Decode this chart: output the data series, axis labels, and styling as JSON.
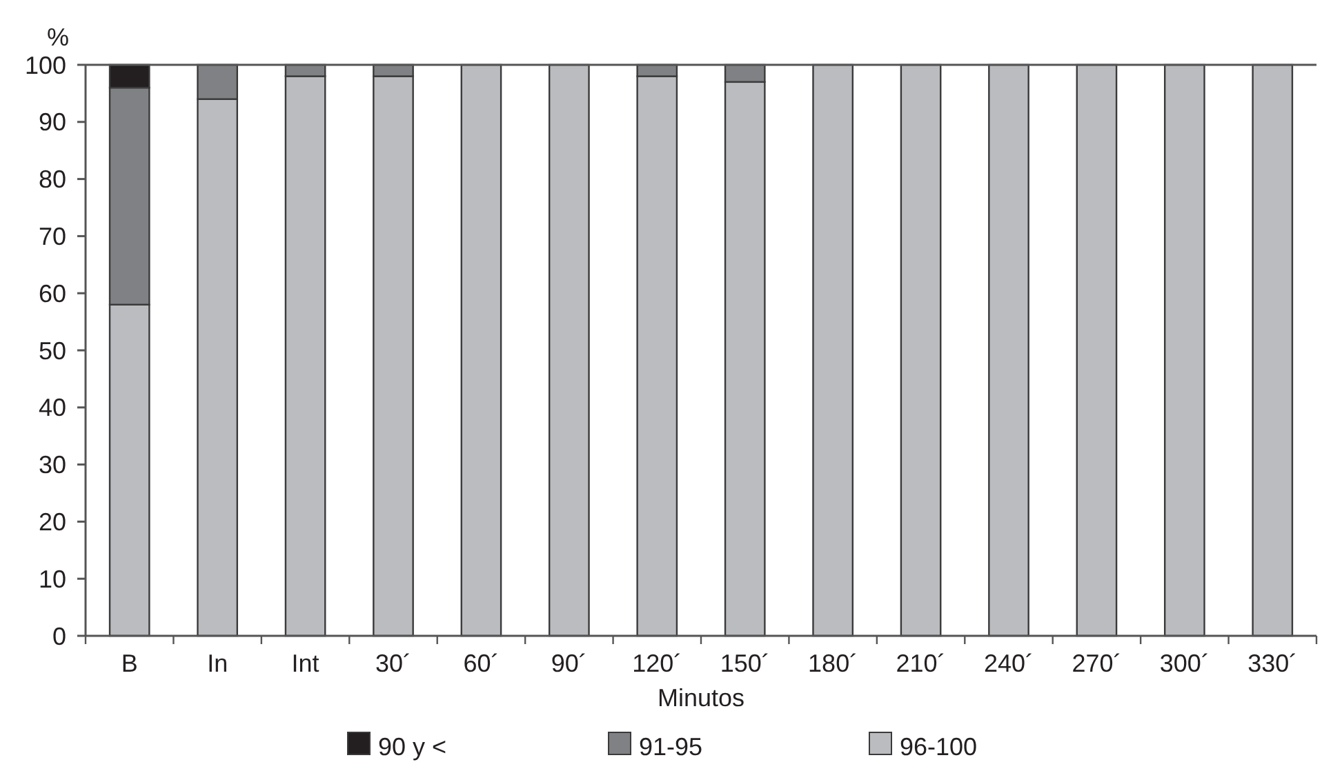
{
  "chart_data": {
    "type": "bar",
    "stacked": true,
    "ylabel": "%",
    "xlabel": "Minutos",
    "categories": [
      "B",
      "In",
      "Int",
      "30´",
      "60´",
      "90´",
      "120´",
      "150´",
      "180´",
      "210´",
      "240´",
      "270´",
      "300´",
      "330´"
    ],
    "series": [
      {
        "name": "96-100",
        "color": "#bbbcc0",
        "values": [
          58,
          94,
          98,
          98,
          100,
          100,
          98,
          97,
          100,
          100,
          100,
          100,
          100,
          100
        ]
      },
      {
        "name": "91-95",
        "color": "#808184",
        "values": [
          38,
          6,
          2,
          2,
          0,
          0,
          2,
          3,
          0,
          0,
          0,
          0,
          0,
          0
        ]
      },
      {
        "name": "90 y <",
        "color": "#231f20",
        "values": [
          4,
          0,
          0,
          0,
          0,
          0,
          0,
          0,
          0,
          0,
          0,
          0,
          0,
          0
        ]
      }
    ],
    "ylim": [
      0,
      100
    ],
    "yticks": [
      0,
      10,
      20,
      30,
      40,
      50,
      60,
      70,
      80,
      90,
      100
    ],
    "grid": false,
    "legend": "bottom"
  }
}
